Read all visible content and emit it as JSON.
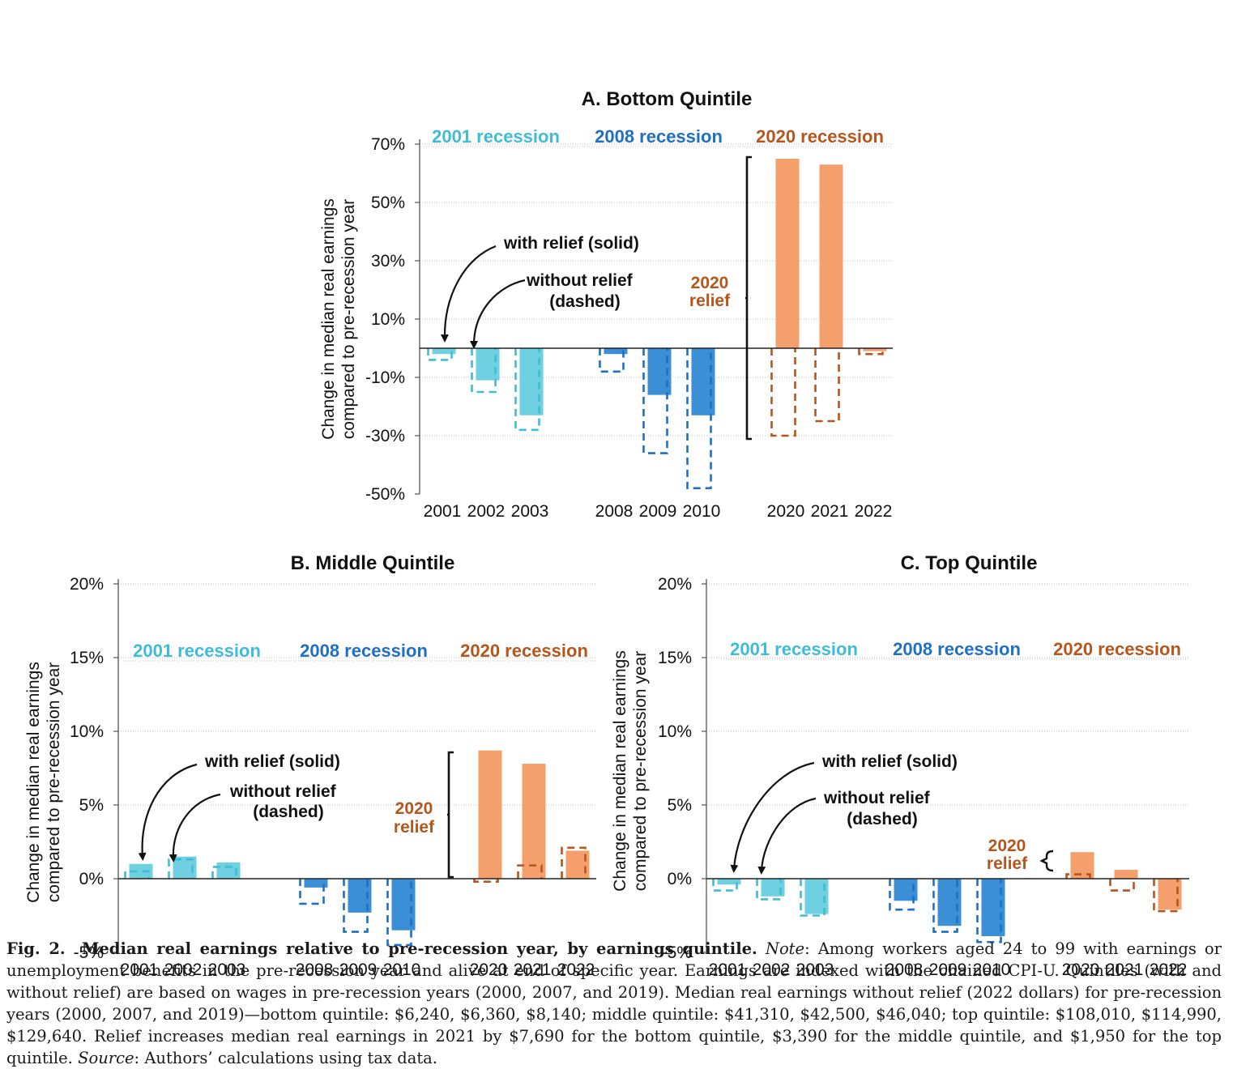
{
  "colors": {
    "r2001": "#3fbcd6",
    "r2001_fill": "#6fd0e2",
    "r2008": "#1f6fc4",
    "r2008_fill": "#3a8fd6",
    "r2020": "#b5561d",
    "r2020_fill": "#f5a06c",
    "axis": "#555555",
    "grid": "#bdbdbd",
    "text": "#111111"
  },
  "caption": {
    "label": "Fig. 2.",
    "title": "Median real earnings relative to pre-recession year, by earnings quintile.",
    "note_label": "Note",
    "note": ": Among workers aged 24 to 99 with earnings or unemployment benefits in the pre-recession year and alive at end of specific year. Earnings are indexed with the chained CPI-U. Quintiles (with and without relief) are based on wages in pre-recession years (2000, 2007, and 2019). Median real earnings without relief (2022 dollars) for pre-recession years (2000, 2007, and 2019)—bottom quintile: $6,240, $6,360, $8,140; middle quintile: $41,310, $42,500, $46,040; top quintile: $108,010, $114,990, $129,640. Relief increases median real earnings in 2021 by $7,690 for the bottom quintile, $3,390 for the middle quintile, and $1,950 for the top quintile.",
    "source_label": "Source",
    "source": ": Authors’ calculations using tax data."
  },
  "chart_data": [
    {
      "type": "bar",
      "title": "A. Bottom Quintile",
      "ylabel": [
        "Change in median real earnings",
        "compared to pre-recession year"
      ],
      "ylim": [
        -50,
        70
      ],
      "yticks": [
        -50,
        -30,
        -10,
        10,
        30,
        50,
        70
      ],
      "tick_labels": [
        "-50%",
        "-30%",
        "-10%",
        "10%",
        "30%",
        "50%",
        "70%"
      ],
      "legend": [
        "2001 recession",
        "2008 recession",
        "2020 recession"
      ],
      "groups": [
        {
          "name": "2001 recession",
          "years": [
            "2001",
            "2002",
            "2003"
          ],
          "with_relief": [
            -2,
            -11,
            -23
          ],
          "without_relief": [
            -4,
            -15,
            -28
          ]
        },
        {
          "name": "2008 recession",
          "years": [
            "2008",
            "2009",
            "2010"
          ],
          "with_relief": [
            -2,
            -16,
            -23
          ],
          "without_relief": [
            -8,
            -36,
            -48
          ]
        },
        {
          "name": "2020 recession",
          "years": [
            "2020",
            "2021",
            "2022"
          ],
          "with_relief": [
            65,
            63,
            -1
          ],
          "without_relief": [
            -30,
            -25,
            -2
          ]
        }
      ],
      "annotations": {
        "with": "with relief (solid)",
        "without_1": "without relief",
        "without_2": "(dashed)",
        "relief_1": "2020",
        "relief_2": "relief"
      }
    },
    {
      "type": "bar",
      "title": "B. Middle Quintile",
      "ylabel": [
        "Change in median real earnings",
        "compared to pre-recession year"
      ],
      "ylim": [
        -5,
        20
      ],
      "yticks": [
        -5,
        0,
        5,
        10,
        15,
        20
      ],
      "tick_labels": [
        "-5%",
        "0%",
        "5%",
        "10%",
        "15%",
        "20%"
      ],
      "legend": [
        "2001 recession",
        "2008 recession",
        "2020 recession"
      ],
      "groups": [
        {
          "name": "2001 recession",
          "years": [
            "2001",
            "2002",
            "2003"
          ],
          "with_relief": [
            1.0,
            1.5,
            1.1
          ],
          "without_relief": [
            0.5,
            1.3,
            0.8
          ]
        },
        {
          "name": "2008 recession",
          "years": [
            "2008",
            "2009",
            "2010"
          ],
          "with_relief": [
            -0.6,
            -2.3,
            -3.5
          ],
          "without_relief": [
            -1.7,
            -3.6,
            -4.5
          ]
        },
        {
          "name": "2020 recession",
          "years": [
            "2020",
            "2021",
            "2022"
          ],
          "with_relief": [
            8.7,
            7.8,
            1.9
          ],
          "without_relief": [
            -0.2,
            0.9,
            2.1
          ]
        }
      ],
      "annotations": {
        "with": "with relief (solid)",
        "without_1": "without relief",
        "without_2": "(dashed)",
        "relief_1": "2020",
        "relief_2": "relief"
      }
    },
    {
      "type": "bar",
      "title": "C. Top Quintile",
      "ylabel": [
        "Change in median real earnings",
        "compared to pre-recession year"
      ],
      "ylim": [
        -5,
        20
      ],
      "yticks": [
        -5,
        0,
        5,
        10,
        15,
        20
      ],
      "tick_labels": [
        "-5%",
        "0%",
        "5%",
        "10%",
        "15%",
        "20%"
      ],
      "legend": [
        "2001 recession",
        "2008 recession",
        "2020 recession"
      ],
      "groups": [
        {
          "name": "2001 recession",
          "years": [
            "2001",
            "2002",
            "2003"
          ],
          "with_relief": [
            -0.4,
            -1.2,
            -2.4
          ],
          "without_relief": [
            -0.8,
            -1.4,
            -2.5
          ]
        },
        {
          "name": "2008 recession",
          "years": [
            "2008",
            "2009",
            "2010"
          ],
          "with_relief": [
            -1.5,
            -3.2,
            -3.9
          ],
          "without_relief": [
            -2.1,
            -3.6,
            -4.3
          ]
        },
        {
          "name": "2020 recession",
          "years": [
            "2020",
            "2021",
            "2022"
          ],
          "with_relief": [
            1.8,
            0.6,
            -2.1
          ],
          "without_relief": [
            0.3,
            -0.8,
            -2.2
          ]
        }
      ],
      "annotations": {
        "with": "with relief (solid)",
        "without_1": "without relief",
        "without_2": "(dashed)",
        "relief_1": "2020",
        "relief_2": "relief"
      }
    }
  ]
}
